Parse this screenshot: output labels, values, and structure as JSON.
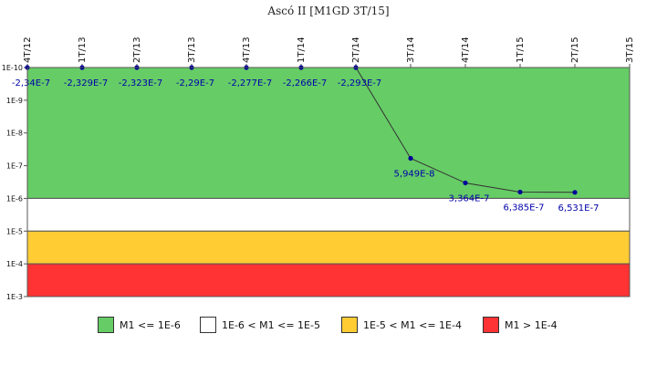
{
  "chart_data": {
    "type": "line",
    "title": "Ascó II [M1GD 3T/15]",
    "categories": [
      "4T/12",
      "1T/13",
      "2T/13",
      "3T/13",
      "4T/13",
      "1T/14",
      "2T/14",
      "3T/14",
      "4T/14",
      "1T/15",
      "2T/15",
      "3T/15"
    ],
    "yscale": "log",
    "y_ticks": [
      "1E-10",
      "1E-9",
      "1E-8",
      "1E-7",
      "1E-6",
      "1E-5",
      "1E-4",
      "1E-3"
    ],
    "yrange_exponents": [
      -10,
      -3
    ],
    "series": [
      {
        "values": [
          -2.34e-07,
          -2.329e-07,
          -2.323e-07,
          -2.29e-07,
          -2.277e-07,
          -2.266e-07,
          -2.293e-07,
          5.949e-08,
          3.364e-07,
          6.385e-07,
          6.531e-07,
          null
        ],
        "labels": [
          "-2,34E-7",
          "-2,329E-7",
          "-2,323E-7",
          "-2,29E-7",
          "-2,277E-7",
          "-2,266E-7",
          "-2,293E-7",
          "5,949E-8",
          "3,364E-7",
          "6,385E-7",
          "6,531E-7",
          ""
        ]
      }
    ],
    "bands": [
      {
        "from_exp": -10,
        "to_exp": -6,
        "color": "#66cc66",
        "label": "M1 <= 1E-6"
      },
      {
        "from_exp": -6,
        "to_exp": -5,
        "color": "#ffffff",
        "label": "1E-6 < M1 <= 1E-5"
      },
      {
        "from_exp": -5,
        "to_exp": -4,
        "color": "#ffcc33",
        "label": "1E-5 < M1 <= 1E-4"
      },
      {
        "from_exp": -4,
        "to_exp": -3,
        "color": "#ff3333",
        "label": "M1 > 1E-4"
      }
    ],
    "colors": {
      "line": "#333333",
      "marker": "#000099",
      "label": "#0000aa"
    }
  }
}
